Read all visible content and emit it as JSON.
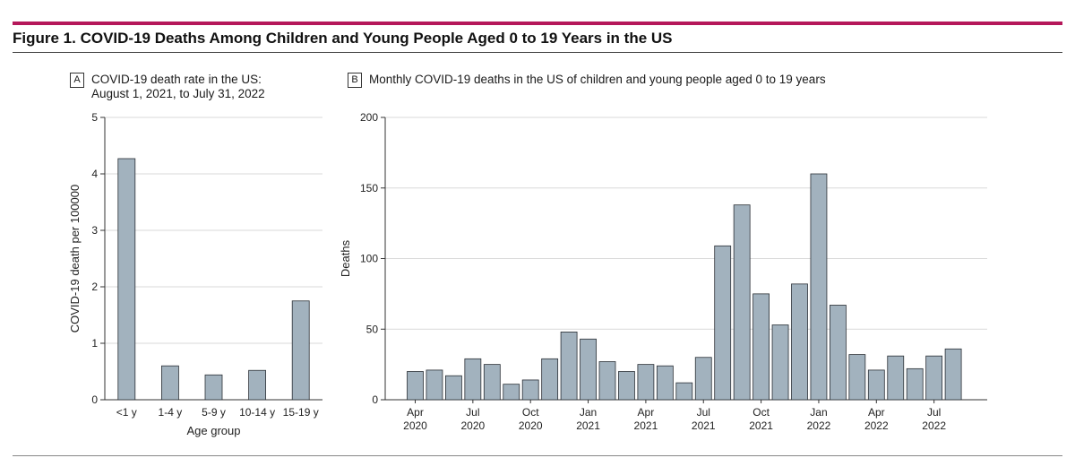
{
  "figure": {
    "title": "Figure 1. COVID-19 Deaths Among Children and Young People Aged 0 to 19 Years in the US"
  },
  "panel_a": {
    "letter": "A",
    "title_line1": "COVID-19 death rate in the US:",
    "title_line2": "August 1, 2021, to July 31, 2022"
  },
  "panel_b": {
    "letter": "B",
    "title": "Monthly COVID-19 deaths in the US of children and young people aged 0 to 19 years"
  },
  "colors": {
    "bar_fill": "#a2b2be",
    "bar_stroke": "#2a2f35",
    "accent": "#b5185a",
    "grid": "#d9d9d9"
  },
  "chart_data": [
    {
      "type": "bar",
      "title": "COVID-19 death rate in the US: August 1, 2021, to July 31, 2022",
      "xlabel": "Age group",
      "ylabel": "COVID-19 death per 100000",
      "categories": [
        "<1 y",
        "1-4 y",
        "5-9 y",
        "10-14 y",
        "15-19 y"
      ],
      "values": [
        4.27,
        0.6,
        0.44,
        0.52,
        1.75
      ],
      "ylim": [
        0,
        5
      ],
      "yticks": [
        0,
        1,
        2,
        3,
        4,
        5
      ],
      "grid": true
    },
    {
      "type": "bar",
      "title": "Monthly COVID-19 deaths in the US of children and young people aged 0 to 19 years",
      "xlabel": "",
      "ylabel": "Deaths",
      "categories": [
        "2020-04",
        "2020-05",
        "2020-06",
        "2020-07",
        "2020-08",
        "2020-09",
        "2020-10",
        "2020-11",
        "2020-12",
        "2021-01",
        "2021-02",
        "2021-03",
        "2021-04",
        "2021-05",
        "2021-06",
        "2021-07",
        "2021-08",
        "2021-09",
        "2021-10",
        "2021-11",
        "2021-12",
        "2022-01",
        "2022-02",
        "2022-03",
        "2022-04",
        "2022-05",
        "2022-06",
        "2022-07",
        "2022-08"
      ],
      "values": [
        20,
        21,
        17,
        29,
        25,
        11,
        14,
        29,
        48,
        43,
        27,
        20,
        25,
        24,
        12,
        30,
        109,
        138,
        75,
        53,
        82,
        160,
        67,
        32,
        21,
        31,
        22,
        31,
        36
      ],
      "ylim": [
        0,
        200
      ],
      "yticks": [
        0,
        50,
        100,
        150,
        200
      ],
      "xtick_labels": [
        {
          "month": "Apr",
          "year": "2020",
          "index": 0
        },
        {
          "month": "Jul",
          "year": "2020",
          "index": 3
        },
        {
          "month": "Oct",
          "year": "2020",
          "index": 6
        },
        {
          "month": "Jan",
          "year": "2021",
          "index": 9
        },
        {
          "month": "Apr",
          "year": "2021",
          "index": 12
        },
        {
          "month": "Jul",
          "year": "2021",
          "index": 15
        },
        {
          "month": "Oct",
          "year": "2021",
          "index": 18
        },
        {
          "month": "Jan",
          "year": "2022",
          "index": 21
        },
        {
          "month": "Apr",
          "year": "2022",
          "index": 24
        },
        {
          "month": "Jul",
          "year": "2022",
          "index": 27
        }
      ],
      "grid": true
    }
  ]
}
